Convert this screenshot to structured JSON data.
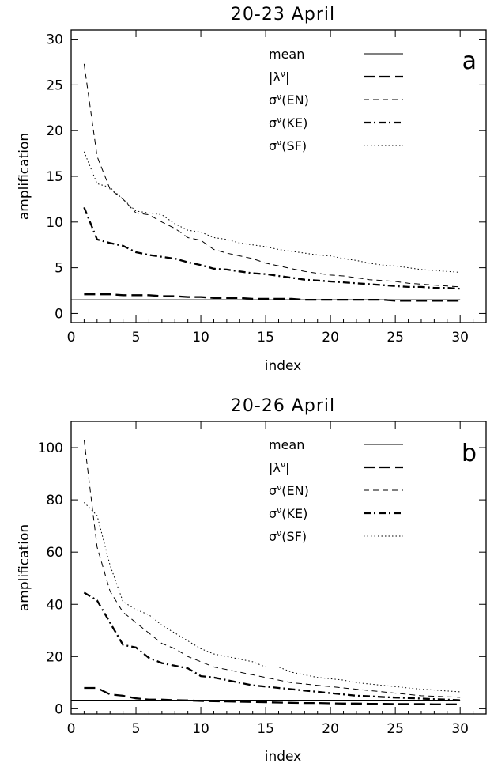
{
  "chart_data": [
    {
      "type": "line",
      "title": "20-23 April",
      "panel_label": "a",
      "xlabel": "index",
      "ylabel": "amplification",
      "xlim": [
        0,
        32
      ],
      "ylim": [
        -1,
        31
      ],
      "xticks": [
        0,
        5,
        10,
        15,
        20,
        25,
        30
      ],
      "yticks": [
        0,
        5,
        10,
        15,
        20,
        25,
        30
      ],
      "x": [
        1,
        2,
        3,
        4,
        5,
        6,
        7,
        8,
        9,
        10,
        11,
        12,
        13,
        14,
        15,
        16,
        17,
        18,
        19,
        20,
        21,
        22,
        23,
        24,
        25,
        26,
        27,
        28,
        29,
        30
      ],
      "mean": 1.5,
      "series": [
        {
          "name": "mean",
          "style": "solid",
          "values": [
            1.5,
            1.5,
            1.5,
            1.5,
            1.5,
            1.5,
            1.5,
            1.5,
            1.5,
            1.5,
            1.5,
            1.5,
            1.5,
            1.5,
            1.5,
            1.5,
            1.5,
            1.5,
            1.5,
            1.5,
            1.5,
            1.5,
            1.5,
            1.5,
            1.5,
            1.5,
            1.5,
            1.5,
            1.5,
            1.5
          ]
        },
        {
          "name": "|λ^ν|",
          "style": "longdash",
          "values": [
            2.1,
            2.1,
            2.1,
            2.0,
            2.0,
            2.0,
            1.9,
            1.9,
            1.8,
            1.8,
            1.7,
            1.7,
            1.7,
            1.6,
            1.6,
            1.6,
            1.6,
            1.5,
            1.5,
            1.5,
            1.5,
            1.5,
            1.5,
            1.5,
            1.4,
            1.4,
            1.4,
            1.4,
            1.4,
            1.4
          ]
        },
        {
          "name": "σ^ν(EN)",
          "style": "dash",
          "values": [
            27.3,
            17.2,
            13.6,
            12.5,
            11.0,
            10.8,
            10.0,
            9.3,
            8.3,
            8.0,
            7.0,
            6.6,
            6.3,
            6.0,
            5.5,
            5.2,
            4.9,
            4.6,
            4.4,
            4.2,
            4.1,
            3.9,
            3.7,
            3.6,
            3.5,
            3.3,
            3.2,
            3.1,
            3.0,
            2.9
          ]
        },
        {
          "name": "σ^ν(KE)",
          "style": "dashdot",
          "values": [
            11.6,
            8.1,
            7.7,
            7.4,
            6.7,
            6.4,
            6.2,
            6.0,
            5.6,
            5.3,
            4.9,
            4.8,
            4.6,
            4.4,
            4.3,
            4.1,
            3.9,
            3.7,
            3.6,
            3.5,
            3.4,
            3.3,
            3.2,
            3.1,
            3.0,
            2.9,
            2.9,
            2.8,
            2.8,
            2.7
          ]
        },
        {
          "name": "σ^ν(SF)",
          "style": "dotted",
          "values": [
            17.7,
            14.2,
            13.8,
            12.5,
            11.2,
            11.0,
            10.8,
            9.8,
            9.1,
            8.9,
            8.3,
            8.1,
            7.7,
            7.5,
            7.3,
            7.0,
            6.8,
            6.6,
            6.4,
            6.3,
            6.0,
            5.8,
            5.5,
            5.3,
            5.2,
            5.0,
            4.8,
            4.7,
            4.6,
            4.5
          ]
        }
      ]
    },
    {
      "type": "line",
      "title": "20-26 April",
      "panel_label": "b",
      "xlabel": "index",
      "ylabel": "amplification",
      "xlim": [
        0,
        32
      ],
      "ylim": [
        -2,
        110
      ],
      "xticks": [
        0,
        5,
        10,
        15,
        20,
        25,
        30
      ],
      "yticks": [
        0,
        20,
        40,
        60,
        80,
        100
      ],
      "x": [
        1,
        2,
        3,
        4,
        5,
        6,
        7,
        8,
        9,
        10,
        11,
        12,
        13,
        14,
        15,
        16,
        17,
        18,
        19,
        20,
        21,
        22,
        23,
        24,
        25,
        26,
        27,
        28,
        29,
        30
      ],
      "series": [
        {
          "name": "mean",
          "style": "solid",
          "values": [
            3.3,
            3.3,
            3.3,
            3.3,
            3.3,
            3.3,
            3.3,
            3.3,
            3.3,
            3.3,
            3.3,
            3.3,
            3.3,
            3.3,
            3.3,
            3.3,
            3.3,
            3.3,
            3.3,
            3.3,
            3.3,
            3.3,
            3.3,
            3.3,
            3.3,
            3.3,
            3.3,
            3.3,
            3.3,
            3.3
          ]
        },
        {
          "name": "|λ^ν|",
          "style": "longdash",
          "values": [
            8.0,
            8.0,
            5.5,
            5.0,
            4.0,
            3.5,
            3.5,
            3.3,
            3.2,
            3.0,
            2.9,
            2.8,
            2.7,
            2.6,
            2.5,
            2.4,
            2.3,
            2.2,
            2.2,
            2.1,
            2.0,
            2.0,
            1.9,
            1.9,
            1.8,
            1.8,
            1.8,
            1.7,
            1.7,
            1.7
          ]
        },
        {
          "name": "σ^ν(EN)",
          "style": "dash",
          "values": [
            103,
            62,
            45,
            37,
            33,
            29,
            25,
            23,
            20,
            18,
            16,
            15,
            14,
            13,
            12,
            11,
            10,
            9.5,
            9,
            8.5,
            8,
            7.5,
            7,
            6.5,
            6,
            5.5,
            5,
            4.8,
            4.6,
            4.4
          ]
        },
        {
          "name": "σ^ν(KE)",
          "style": "dashdot",
          "values": [
            44.5,
            41.5,
            33,
            24.5,
            23.5,
            19.5,
            17.5,
            16.5,
            15.5,
            12.5,
            12,
            11,
            10,
            9,
            8.5,
            8,
            7.5,
            7,
            6.5,
            6,
            5.5,
            5,
            4.8,
            4.5,
            4.3,
            4.1,
            3.9,
            3.7,
            3.5,
            3.3
          ]
        },
        {
          "name": "σ^ν(SF)",
          "style": "dotted",
          "values": [
            79,
            74,
            55,
            41,
            38,
            36,
            32,
            29,
            26,
            23,
            21,
            20,
            19,
            18,
            16,
            16,
            14,
            13,
            12,
            11.5,
            11,
            10,
            9.5,
            9,
            8.5,
            8,
            7.5,
            7.2,
            6.8,
            6.5
          ]
        }
      ]
    }
  ]
}
